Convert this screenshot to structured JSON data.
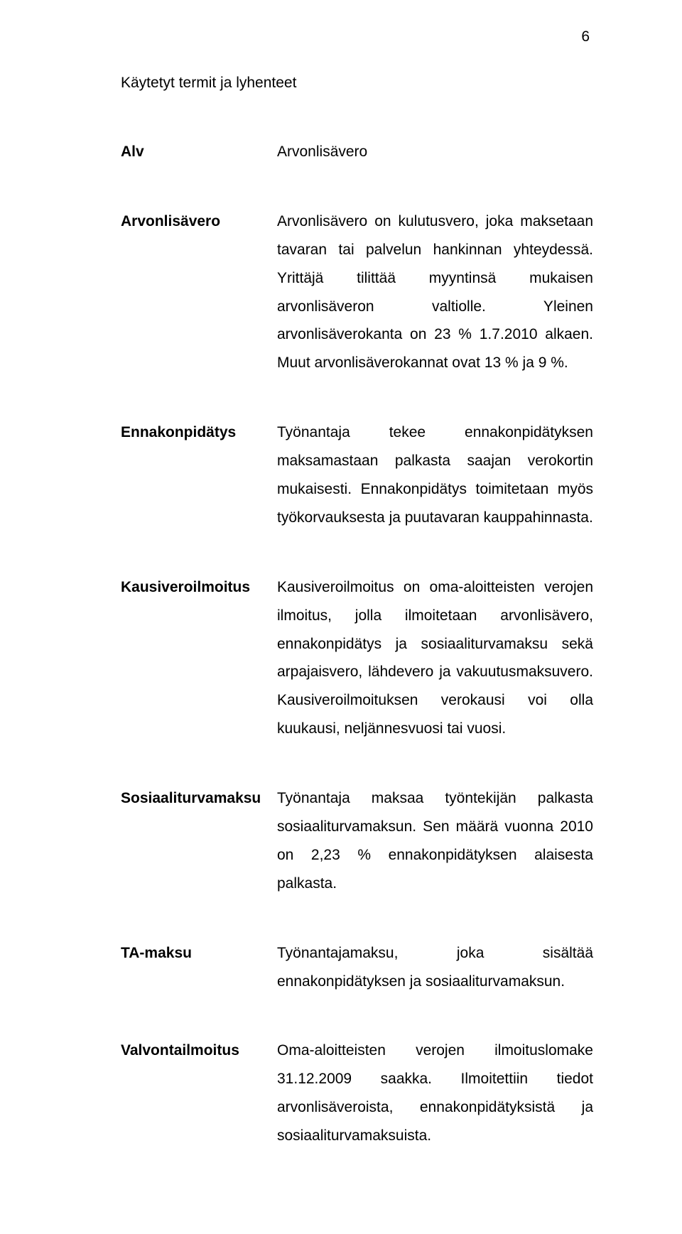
{
  "page": {
    "number": "6",
    "heading": "Käytetyt termit ja lyhenteet",
    "background_color": "#ffffff",
    "text_color": "#000000",
    "font_family": "Arial",
    "body_fontsize": 21,
    "line_height": 1.9
  },
  "entries": [
    {
      "term": "Alv",
      "desc": "Arvonlisävero"
    },
    {
      "term": "Arvonlisävero",
      "desc": "Arvonlisävero on kulutusvero, joka maksetaan tavaran tai palvelun hankinnan yhteydessä. Yrittäjä tilittää myyntinsä mukaisen arvonlisäveron valtiolle. Yleinen arvonlisäverokanta on 23 % 1.7.2010 alkaen. Muut arvonlisäverokannat ovat 13 % ja 9 %."
    },
    {
      "term": "Ennakonpidätys",
      "desc": "Työnantaja tekee ennakonpidätyksen maksamastaan palkasta saajan verokortin mukaisesti. Ennakonpidätys toimitetaan myös työkorvauksesta ja puutavaran kauppahinnasta."
    },
    {
      "term": "Kausiveroilmoitus",
      "desc": "Kausiveroilmoitus on oma-aloitteisten verojen ilmoitus, jolla ilmoitetaan arvonlisävero, ennakonpidätys ja sosiaaliturvamaksu sekä arpajaisvero, lähdevero ja vakuutusmaksuvero. Kausiveroilmoituksen verokausi voi olla kuukausi, neljännesvuosi tai vuosi."
    },
    {
      "term": "Sosiaaliturvamaksu",
      "desc": "Työnantaja maksaa työntekijän palkasta sosiaaliturvamaksun. Sen määrä vuonna 2010 on 2,23 % ennakonpidätyksen alaisesta palkasta."
    },
    {
      "term": "TA-maksu",
      "desc": "Työnantajamaksu, joka sisältää ennakonpidätyksen ja sosiaaliturvamaksun."
    },
    {
      "term": "Valvontailmoitus",
      "desc": "Oma-aloitteisten verojen ilmoituslomake 31.12.2009 saakka. Ilmoitettiin tiedot arvonlisäveroista, ennakonpidätyksistä ja sosiaaliturvamaksuista."
    }
  ]
}
